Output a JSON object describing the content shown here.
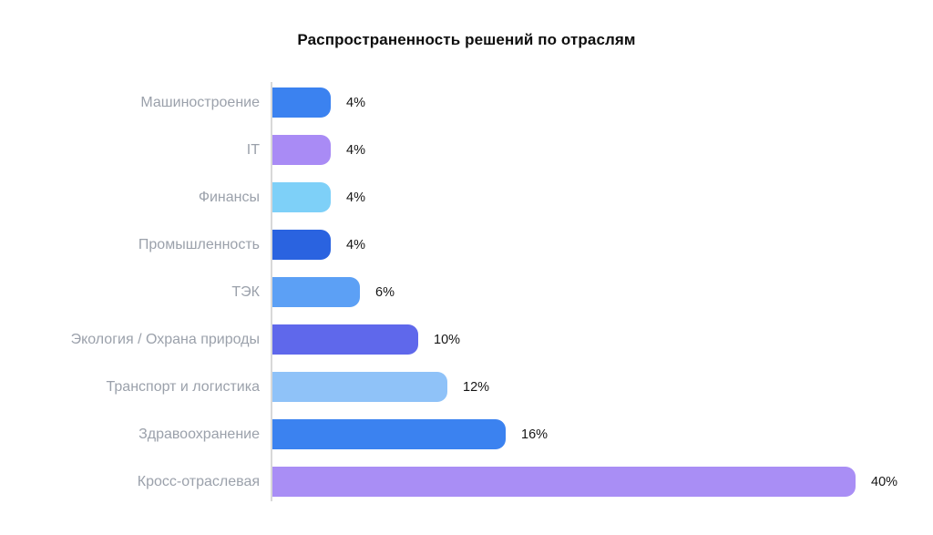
{
  "title": "Распространенность решений по отраслям",
  "chart_data": {
    "type": "bar",
    "orientation": "horizontal",
    "title": "Распространенность решений по отраслям",
    "categories": [
      "Машиностроение",
      "IT",
      "Финансы",
      "Промышленность",
      "ТЭК",
      "Экология / Охрана природы",
      "Транспорт и логистика",
      "Здравоохранение",
      "Кросс-отраслевая"
    ],
    "values": [
      4,
      4,
      4,
      4,
      6,
      10,
      12,
      16,
      40
    ],
    "value_labels": [
      "4%",
      "4%",
      "4%",
      "4%",
      "6%",
      "10%",
      "12%",
      "16%",
      "40%"
    ],
    "bar_colors": [
      "#3b82f0",
      "#a98bf5",
      "#7ed0f8",
      "#2a63e0",
      "#5ca0f5",
      "#5f68eb",
      "#8fc2f8",
      "#3b82f0",
      "#a98ef5"
    ],
    "xlim": [
      0,
      42
    ],
    "xlabel": "",
    "ylabel": "",
    "grid": false,
    "legend": false,
    "category_label_color": "#9ba1ab",
    "value_label_color": "#151515",
    "axis_line_color": "#d8d8d8",
    "background_color": "#ffffff"
  }
}
